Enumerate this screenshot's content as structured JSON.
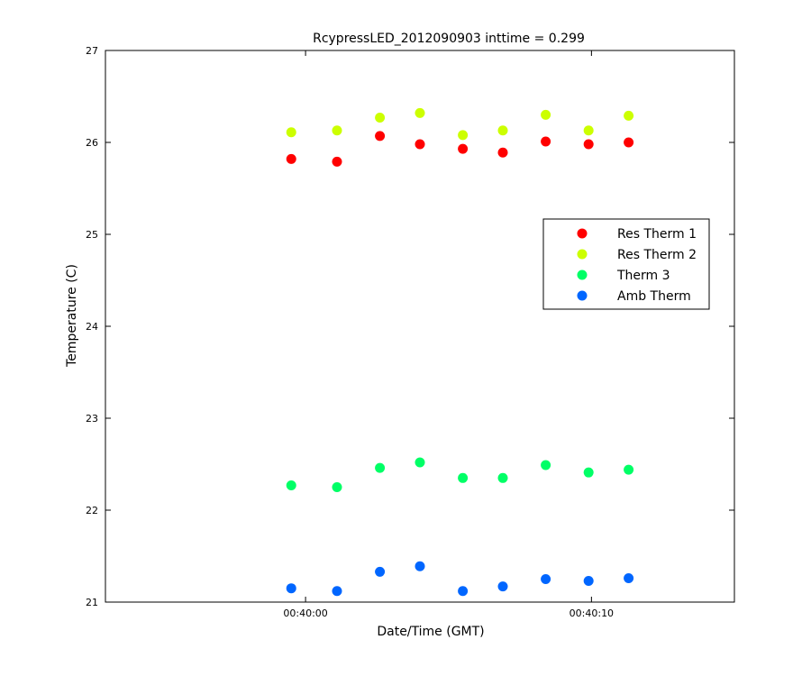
{
  "chart_data": {
    "type": "scatter",
    "title": "RcypressLED_2012090903 inttime = 0.299",
    "xlabel": "Date/Time (GMT)",
    "ylabel": "Temperature (C)",
    "x_unit": "seconds after 00:40:00",
    "xlim": [
      -7,
      15
    ],
    "ylim": [
      21,
      27
    ],
    "x_ticks": [
      {
        "value": 0,
        "label": "00:40:00"
      },
      {
        "value": 10,
        "label": "00:40:10"
      }
    ],
    "y_ticks": [
      {
        "value": 21,
        "label": "21"
      },
      {
        "value": 22,
        "label": "22"
      },
      {
        "value": 23,
        "label": "23"
      },
      {
        "value": 24,
        "label": "24"
      },
      {
        "value": 25,
        "label": "25"
      },
      {
        "value": 26,
        "label": "26"
      },
      {
        "value": 27,
        "label": "27"
      }
    ],
    "grid": false,
    "legend_position": "right",
    "x": [
      -0.5,
      1.1,
      2.6,
      4.0,
      5.5,
      6.9,
      8.4,
      9.9,
      11.3
    ],
    "series": [
      {
        "name": "Res Therm 1",
        "color": "#ff0000",
        "values": [
          25.82,
          25.79,
          26.07,
          25.98,
          25.93,
          25.89,
          26.01,
          25.98,
          26.0
        ]
      },
      {
        "name": "Res Therm 2",
        "color": "#ccff00",
        "values": [
          26.11,
          26.13,
          26.27,
          26.32,
          26.08,
          26.13,
          26.3,
          26.13,
          26.29
        ]
      },
      {
        "name": "Therm 3",
        "color": "#00ff66",
        "values": [
          22.27,
          22.25,
          22.46,
          22.52,
          22.35,
          22.35,
          22.49,
          22.41,
          22.44
        ]
      },
      {
        "name": "Amb Therm",
        "color": "#0066ff",
        "values": [
          21.15,
          21.12,
          21.33,
          21.39,
          21.12,
          21.17,
          21.25,
          21.23,
          21.26
        ]
      }
    ]
  }
}
